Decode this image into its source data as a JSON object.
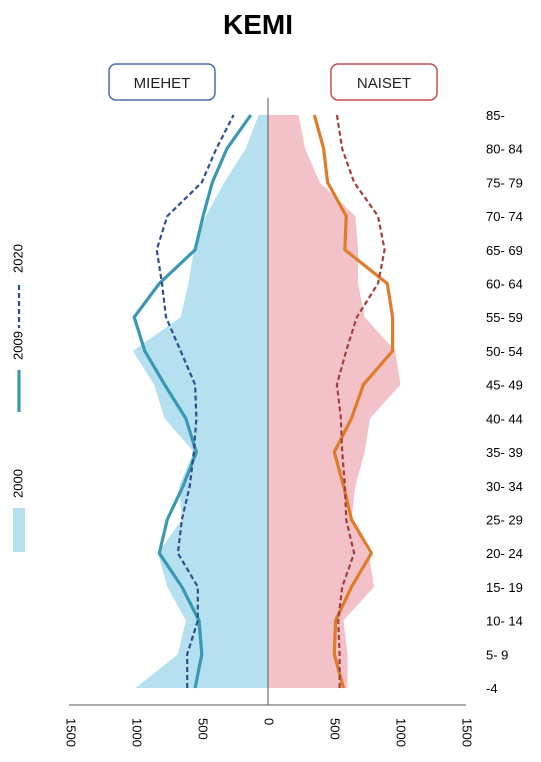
{
  "chart_data": {
    "type": "area",
    "title": "KEMI",
    "left_label": "MIEHET",
    "right_label": "NAISET",
    "age_groups": [
      "-4",
      "5- 9",
      "10- 14",
      "15- 19",
      "20- 24",
      "25- 29",
      "30- 34",
      "35- 39",
      "40- 44",
      "45- 49",
      "50- 54",
      "55- 59",
      "60- 64",
      "65- 69",
      "70- 74",
      "75- 79",
      "80- 84",
      "85-"
    ],
    "x_ticks": [
      "1500",
      "1000",
      "500",
      "0",
      "500",
      "1000",
      "1500"
    ],
    "xlim": [
      -1500,
      1500
    ],
    "series": [
      {
        "name": "2000",
        "style": "filled area",
        "colors": {
          "male": "#b5e0ef",
          "female": "#f3c2c9"
        },
        "male": [
          1000,
          680,
          620,
          760,
          830,
          650,
          670,
          560,
          780,
          860,
          1020,
          660,
          600,
          560,
          470,
          330,
          170,
          70
        ],
        "female": [
          600,
          600,
          570,
          800,
          760,
          630,
          660,
          730,
          770,
          1000,
          960,
          730,
          680,
          680,
          660,
          390,
          280,
          230
        ]
      },
      {
        "name": "2009",
        "style": "solid line",
        "color": "#3a98b3",
        "male": [
          550,
          500,
          520,
          650,
          820,
          760,
          640,
          540,
          620,
          780,
          930,
          1010,
          820,
          550,
          490,
          420,
          310,
          130
        ],
        "female": [
          570,
          500,
          510,
          630,
          780,
          630,
          570,
          500,
          630,
          720,
          940,
          940,
          900,
          580,
          590,
          450,
          420,
          350
        ]
      },
      {
        "name": "2020",
        "style": "dashed line",
        "color": "#2f4f8f",
        "male": [
          610,
          610,
          530,
          530,
          680,
          650,
          590,
          560,
          540,
          550,
          660,
          770,
          800,
          840,
          760,
          500,
          390,
          260
        ],
        "female": [
          540,
          540,
          530,
          560,
          650,
          590,
          580,
          560,
          550,
          520,
          590,
          670,
          830,
          880,
          830,
          650,
          560,
          520
        ]
      }
    ],
    "grid": false,
    "legend": "left, rotated vertically"
  }
}
